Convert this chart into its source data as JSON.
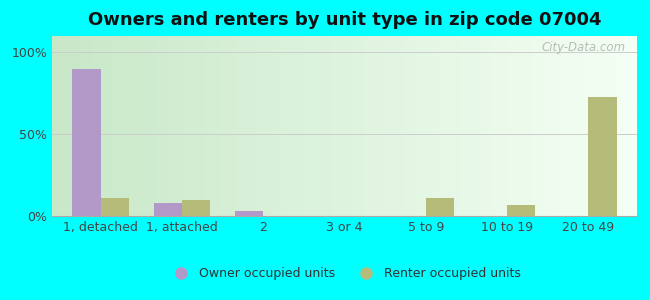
{
  "title": "Owners and renters by unit type in zip code 07004",
  "categories": [
    "1, detached",
    "1, attached",
    "2",
    "3 or 4",
    "5 to 9",
    "10 to 19",
    "20 to 49"
  ],
  "owner_values": [
    90,
    8,
    3,
    0,
    0,
    0,
    0
  ],
  "renter_values": [
    11,
    10,
    0,
    0,
    11,
    7,
    73
  ],
  "owner_color": "#b399c8",
  "renter_color": "#b5bc7a",
  "background_color": "#00ffff",
  "ylabel_ticks": [
    "0%",
    "50%",
    "100%"
  ],
  "ytick_values": [
    0,
    50,
    100
  ],
  "ylim": [
    0,
    110
  ],
  "legend_owner": "Owner occupied units",
  "legend_renter": "Renter occupied units",
  "watermark": "City-Data.com",
  "bar_width": 0.35,
  "title_fontsize": 13,
  "tick_fontsize": 9,
  "legend_fontsize": 9,
  "grad_left": "#c8e8c8",
  "grad_right": "#f0fff0"
}
